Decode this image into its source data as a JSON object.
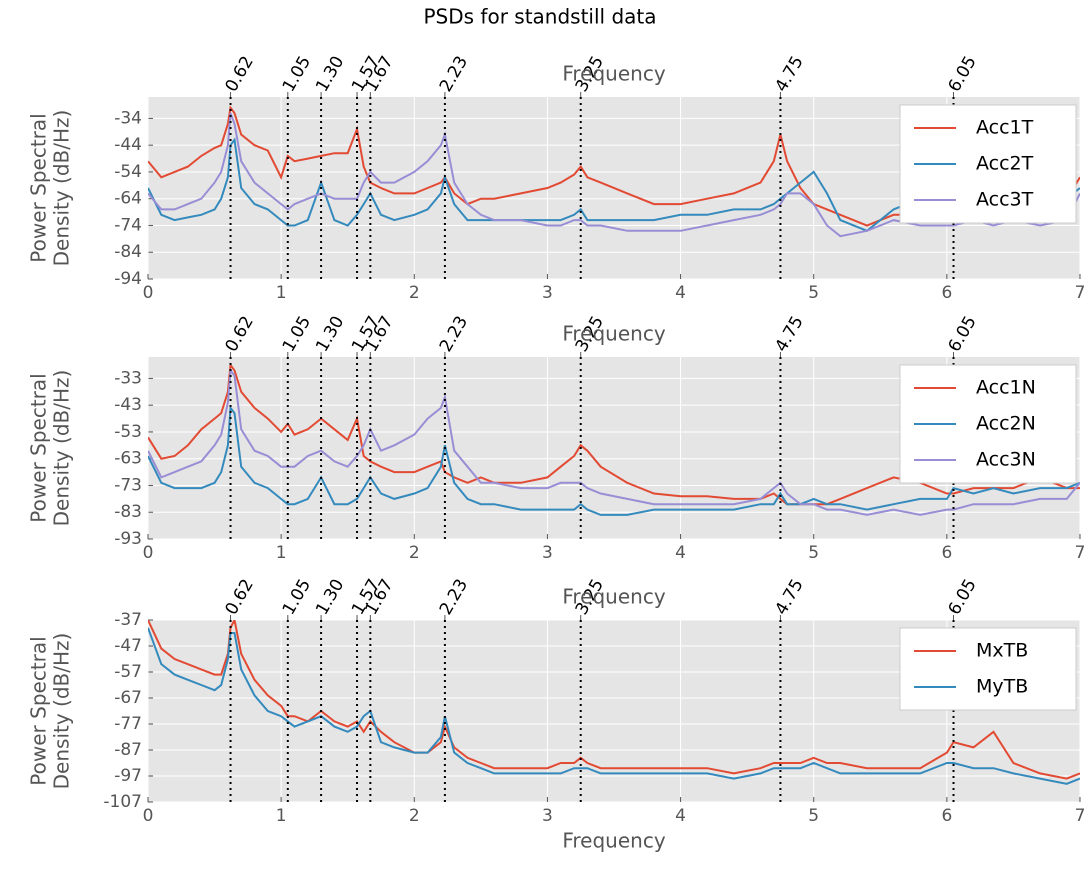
{
  "title": "PSDs for standstill data",
  "chart_data": [
    {
      "type": "line",
      "xlabel_top": "Frequency",
      "ylabel": [
        "Power Spectral",
        "Density (dB/Hz)"
      ],
      "xlim": [
        0,
        7
      ],
      "xticks": [
        0,
        1,
        2,
        3,
        4,
        5,
        6,
        7
      ],
      "ylim": [
        -94,
        -26
      ],
      "yticks": [
        -94,
        -84,
        -74,
        -64,
        -54,
        -44,
        -34
      ],
      "top_ticks": [
        0.62,
        1.05,
        {
          "value": 1.3,
          "label": "1.30"
        },
        1.57,
        1.67,
        2.23,
        3.25,
        4.75,
        6.05
      ],
      "grid": true,
      "legend": "upper right",
      "x": [
        0,
        0.1,
        0.2,
        0.3,
        0.4,
        0.5,
        0.55,
        0.6,
        0.62,
        0.65,
        0.7,
        0.8,
        0.9,
        1.0,
        1.05,
        1.1,
        1.2,
        1.3,
        1.4,
        1.5,
        1.57,
        1.62,
        1.67,
        1.75,
        1.85,
        2.0,
        2.1,
        2.2,
        2.23,
        2.3,
        2.4,
        2.5,
        2.6,
        2.8,
        3.0,
        3.1,
        3.2,
        3.25,
        3.3,
        3.4,
        3.6,
        3.8,
        4.0,
        4.2,
        4.4,
        4.6,
        4.7,
        4.75,
        4.8,
        4.9,
        5.0,
        5.1,
        5.2,
        5.4,
        5.6,
        5.8,
        6.0,
        6.05,
        6.2,
        6.35,
        6.5,
        6.7,
        6.9,
        7.0
      ],
      "series": [
        {
          "name": "Acc1T",
          "color": "#e24a33",
          "values": [
            -50,
            -56,
            -54,
            -52,
            -48,
            -45,
            -44,
            -36,
            -30,
            -32,
            -40,
            -44,
            -46,
            -56,
            -48,
            -50,
            -49,
            -48,
            -47,
            -47,
            -38,
            -52,
            -58,
            -60,
            -62,
            -62,
            -60,
            -58,
            -56,
            -62,
            -66,
            -64,
            -64,
            -62,
            -60,
            -58,
            -55,
            -52,
            -56,
            -58,
            -62,
            -66,
            -66,
            -64,
            -62,
            -58,
            -50,
            -40,
            -50,
            -60,
            -66,
            -68,
            -70,
            -74,
            -70,
            -70,
            -68,
            -68,
            -68,
            -68,
            -68,
            -66,
            -64,
            -56
          ]
        },
        {
          "name": "Acc2T",
          "color": "#348abd",
          "values": [
            -60,
            -70,
            -72,
            -71,
            -70,
            -68,
            -64,
            -56,
            -44,
            -42,
            -60,
            -66,
            -68,
            -72,
            -74,
            -74,
            -72,
            -58,
            -72,
            -74,
            -70,
            -66,
            -62,
            -70,
            -72,
            -70,
            -68,
            -62,
            -56,
            -66,
            -72,
            -72,
            -72,
            -72,
            -72,
            -72,
            -70,
            -68,
            -72,
            -72,
            -72,
            -72,
            -70,
            -70,
            -68,
            -68,
            -66,
            -64,
            -62,
            -58,
            -54,
            -62,
            -72,
            -76,
            -68,
            -64,
            -64,
            -64,
            -64,
            -64,
            -64,
            -64,
            -64,
            -60
          ]
        },
        {
          "name": "Acc3T",
          "color": "#988ed5",
          "values": [
            -62,
            -68,
            -68,
            -66,
            -64,
            -58,
            -54,
            -44,
            -32,
            -36,
            -50,
            -58,
            -62,
            -66,
            -68,
            -66,
            -64,
            -62,
            -64,
            -64,
            -64,
            -58,
            -54,
            -58,
            -58,
            -54,
            -50,
            -44,
            -40,
            -58,
            -66,
            -70,
            -72,
            -72,
            -74,
            -74,
            -72,
            -72,
            -74,
            -74,
            -76,
            -76,
            -76,
            -74,
            -72,
            -70,
            -68,
            -66,
            -62,
            -62,
            -66,
            -74,
            -78,
            -76,
            -72,
            -74,
            -74,
            -74,
            -72,
            -74,
            -72,
            -74,
            -72,
            -62
          ]
        }
      ]
    },
    {
      "type": "line",
      "xlabel_top": "Frequency",
      "ylabel": [
        "Power Spectral",
        "Density (dB/Hz)"
      ],
      "xlim": [
        0,
        7
      ],
      "xticks": [
        0,
        1,
        2,
        3,
        4,
        5,
        6,
        7
      ],
      "ylim": [
        -93,
        -25
      ],
      "yticks": [
        -93,
        -83,
        -73,
        -63,
        -53,
        -43,
        -33
      ],
      "top_ticks": [
        0.62,
        1.05,
        {
          "value": 1.3,
          "label": "1.30"
        },
        1.57,
        1.67,
        2.23,
        3.25,
        4.75,
        6.05
      ],
      "grid": true,
      "legend": "upper right",
      "x": [
        0,
        0.1,
        0.2,
        0.3,
        0.4,
        0.5,
        0.55,
        0.6,
        0.62,
        0.65,
        0.7,
        0.8,
        0.9,
        1.0,
        1.05,
        1.1,
        1.2,
        1.3,
        1.4,
        1.5,
        1.57,
        1.62,
        1.67,
        1.75,
        1.85,
        2.0,
        2.1,
        2.2,
        2.23,
        2.3,
        2.4,
        2.5,
        2.6,
        2.8,
        3.0,
        3.1,
        3.2,
        3.25,
        3.3,
        3.4,
        3.6,
        3.8,
        4.0,
        4.2,
        4.4,
        4.6,
        4.7,
        4.75,
        4.8,
        4.9,
        5.0,
        5.1,
        5.2,
        5.4,
        5.6,
        5.8,
        6.0,
        6.05,
        6.2,
        6.35,
        6.5,
        6.7,
        6.9,
        7.0
      ],
      "series": [
        {
          "name": "Acc1N",
          "color": "#e24a33",
          "values": [
            -55,
            -63,
            -62,
            -58,
            -52,
            -48,
            -46,
            -38,
            -28,
            -30,
            -38,
            -44,
            -48,
            -53,
            -50,
            -54,
            -52,
            -48,
            -52,
            -56,
            -48,
            -62,
            -64,
            -66,
            -68,
            -68,
            -66,
            -64,
            -68,
            -70,
            -72,
            -70,
            -72,
            -72,
            -70,
            -66,
            -62,
            -58,
            -60,
            -66,
            -72,
            -76,
            -77,
            -77,
            -78,
            -78,
            -76,
            -78,
            -80,
            -80,
            -80,
            -80,
            -78,
            -74,
            -70,
            -72,
            -76,
            -76,
            -74,
            -74,
            -74,
            -70,
            -74,
            -74
          ]
        },
        {
          "name": "Acc2N",
          "color": "#348abd",
          "values": [
            -62,
            -72,
            -74,
            -74,
            -74,
            -72,
            -68,
            -58,
            -44,
            -46,
            -66,
            -72,
            -74,
            -78,
            -80,
            -80,
            -78,
            -70,
            -80,
            -80,
            -78,
            -74,
            -70,
            -76,
            -78,
            -76,
            -74,
            -66,
            -58,
            -72,
            -78,
            -80,
            -80,
            -82,
            -82,
            -82,
            -82,
            -80,
            -82,
            -84,
            -84,
            -82,
            -82,
            -82,
            -82,
            -80,
            -80,
            -76,
            -80,
            -80,
            -78,
            -80,
            -80,
            -82,
            -80,
            -78,
            -78,
            -74,
            -76,
            -74,
            -76,
            -74,
            -74,
            -72
          ]
        },
        {
          "name": "Acc3N",
          "color": "#988ed5",
          "values": [
            -60,
            -70,
            -68,
            -66,
            -64,
            -58,
            -54,
            -42,
            -30,
            -32,
            -52,
            -60,
            -62,
            -66,
            -66,
            -66,
            -62,
            -60,
            -64,
            -66,
            -62,
            -58,
            -52,
            -60,
            -58,
            -54,
            -48,
            -44,
            -40,
            -60,
            -66,
            -72,
            -72,
            -74,
            -74,
            -72,
            -72,
            -72,
            -74,
            -76,
            -78,
            -80,
            -80,
            -80,
            -80,
            -78,
            -74,
            -72,
            -76,
            -80,
            -80,
            -82,
            -82,
            -84,
            -82,
            -84,
            -82,
            -82,
            -80,
            -80,
            -80,
            -78,
            -78,
            -72
          ]
        }
      ]
    },
    {
      "type": "line",
      "xlabel_top": "Frequency",
      "xlabel": "Frequency",
      "ylabel": [
        "Power Spectral",
        "Density (dB/Hz)"
      ],
      "xlim": [
        0,
        7
      ],
      "xticks": [
        0,
        1,
        2,
        3,
        4,
        5,
        6,
        7
      ],
      "ylim": [
        -107,
        -37
      ],
      "yticks": [
        -107,
        -97,
        -87,
        -77,
        -67,
        -57,
        -47,
        -37
      ],
      "top_ticks": [
        0.62,
        1.05,
        {
          "value": 1.3,
          "label": "1.30"
        },
        1.57,
        1.67,
        2.23,
        3.25,
        4.75,
        6.05
      ],
      "grid": true,
      "legend": "upper right",
      "x": [
        0,
        0.1,
        0.2,
        0.3,
        0.4,
        0.5,
        0.55,
        0.6,
        0.62,
        0.65,
        0.7,
        0.8,
        0.9,
        1.0,
        1.05,
        1.1,
        1.2,
        1.3,
        1.4,
        1.5,
        1.57,
        1.62,
        1.67,
        1.75,
        1.85,
        2.0,
        2.1,
        2.2,
        2.23,
        2.3,
        2.4,
        2.5,
        2.6,
        2.8,
        3.0,
        3.1,
        3.2,
        3.25,
        3.3,
        3.4,
        3.6,
        3.8,
        4.0,
        4.2,
        4.4,
        4.6,
        4.7,
        4.75,
        4.8,
        4.9,
        5.0,
        5.1,
        5.2,
        5.4,
        5.6,
        5.8,
        6.0,
        6.05,
        6.2,
        6.35,
        6.5,
        6.7,
        6.9,
        7.0
      ],
      "series": [
        {
          "name": "MxTB",
          "color": "#e24a33",
          "values": [
            -37,
            -48,
            -52,
            -54,
            -56,
            -58,
            -58,
            -50,
            -40,
            -37,
            -50,
            -60,
            -66,
            -70,
            -74,
            -74,
            -76,
            -72,
            -76,
            -78,
            -76,
            -80,
            -76,
            -80,
            -84,
            -88,
            -88,
            -84,
            -78,
            -86,
            -90,
            -92,
            -94,
            -94,
            -94,
            -92,
            -92,
            -90,
            -92,
            -94,
            -94,
            -94,
            -94,
            -94,
            -96,
            -94,
            -92,
            -92,
            -92,
            -92,
            -90,
            -92,
            -92,
            -94,
            -94,
            -94,
            -88,
            -84,
            -86,
            -80,
            -92,
            -96,
            -98,
            -96
          ]
        },
        {
          "name": "MyTB",
          "color": "#348abd",
          "values": [
            -40,
            -54,
            -58,
            -60,
            -62,
            -64,
            -62,
            -52,
            -42,
            -42,
            -56,
            -66,
            -72,
            -74,
            -76,
            -78,
            -76,
            -74,
            -78,
            -80,
            -78,
            -74,
            -72,
            -84,
            -86,
            -88,
            -88,
            -82,
            -74,
            -88,
            -92,
            -94,
            -96,
            -96,
            -96,
            -96,
            -94,
            -94,
            -94,
            -96,
            -96,
            -96,
            -96,
            -96,
            -98,
            -96,
            -94,
            -94,
            -94,
            -94,
            -92,
            -94,
            -96,
            -96,
            -96,
            -96,
            -92,
            -92,
            -94,
            -94,
            -96,
            -98,
            -100,
            -98
          ]
        }
      ]
    }
  ]
}
